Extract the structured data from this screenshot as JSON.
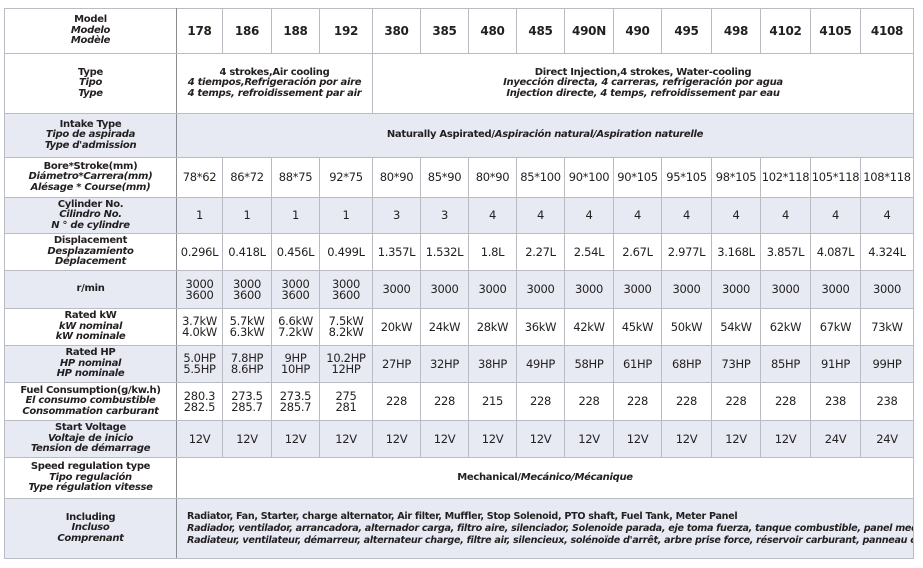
{
  "models": [
    "178",
    "186",
    "188",
    "192",
    "380",
    "385",
    "480",
    "485",
    "490N",
    "490",
    "495",
    "498",
    "4102",
    "4105",
    "4108"
  ],
  "rows": [
    {
      "key": "model",
      "label": [
        "Model",
        "Modelo",
        "Modèle"
      ],
      "bg": "white"
    },
    {
      "key": "type",
      "label": [
        "Type",
        "Tipo",
        "Type"
      ],
      "bg": "white",
      "spans": [
        {
          "cols": 4,
          "lines": [
            "4 strokes,Air cooling",
            "4 tiempos,Refrigeración por aire",
            "4 temps, refroidissement par air"
          ]
        },
        {
          "cols": 11,
          "lines": [
            "Direct Injection,4 strokes, Water-cooling",
            "Inyección directa, 4 carreras, refrigeración por agua",
            "Injection directe, 4 temps, refroidissement par eau"
          ]
        }
      ]
    },
    {
      "key": "intake",
      "label": [
        "Intake Type",
        "Tipo de aspirada",
        "Type d'admission"
      ],
      "bg": "blue",
      "spans": [
        {
          "cols": 15,
          "parts": [
            "Naturally Aspirated/",
            "Aspiración natural/Aspiration naturelle"
          ]
        }
      ]
    },
    {
      "key": "bore",
      "label": [
        "Bore*Stroke(mm)",
        "Diámetro*Carrera(mm)",
        "Alésage * Course(mm)"
      ],
      "bg": "white",
      "values": [
        "78*62",
        "86*72",
        "88*75",
        "92*75",
        "80*90",
        "85*90",
        "80*90",
        "85*100",
        "90*100",
        "90*105",
        "95*105",
        "98*105",
        "102*118",
        "105*118",
        "108*118"
      ]
    },
    {
      "key": "cylinder",
      "label": [
        "Cylinder No.",
        "Cilindro No.",
        "N ° de cylindre"
      ],
      "bg": "blue",
      "values": [
        "1",
        "1",
        "1",
        "1",
        "3",
        "3",
        "4",
        "4",
        "4",
        "4",
        "4",
        "4",
        "4",
        "4",
        "4"
      ]
    },
    {
      "key": "displacement",
      "label": [
        "Displacement",
        "Desplazamiento",
        "Déplacement"
      ],
      "bg": "white",
      "values": [
        "0.296L",
        "0.418L",
        "0.456L",
        "0.499L",
        "1.357L",
        "1.532L",
        "1.8L",
        "2.27L",
        "2.54L",
        "2.67L",
        "2.977L",
        "3.168L",
        "3.857L",
        "4.087L",
        "4.324L"
      ]
    },
    {
      "key": "rpm",
      "label": [
        "r/min"
      ],
      "bg": "blue",
      "values": [
        "3000\n3600",
        "3000\n3600",
        "3000\n3600",
        "3000\n3600",
        "3000",
        "3000",
        "3000",
        "3000",
        "3000",
        "3000",
        "3000",
        "3000",
        "3000",
        "3000",
        "3000"
      ]
    },
    {
      "key": "rated_kw",
      "label": [
        "Rated kW",
        "kW nominal",
        "kW nominale"
      ],
      "bg": "white",
      "values": [
        "3.7kW\n4.0kW",
        "5.7kW\n6.3kW",
        "6.6kW\n7.2kW",
        "7.5kW\n8.2kW",
        "20kW",
        "24kW",
        "28kW",
        "36kW",
        "42kW",
        "45kW",
        "50kW",
        "54kW",
        "62kW",
        "67kW",
        "73kW"
      ]
    },
    {
      "key": "rated_hp",
      "label": [
        "Rated HP",
        "HP nominal",
        "HP nominale"
      ],
      "bg": "blue",
      "values": [
        "5.0HP\n5.5HP",
        "7.8HP\n8.6HP",
        "9HP\n10HP",
        "10.2HP\n12HP",
        "27HP",
        "32HP",
        "38HP",
        "49HP",
        "58HP",
        "61HP",
        "68HP",
        "73HP",
        "85HP",
        "91HP",
        "99HP"
      ]
    },
    {
      "key": "fuel",
      "label": [
        "Fuel Consumption(g/kw.h)",
        "El consumo combustible",
        "Consommation carburant"
      ],
      "bg": "white",
      "values": [
        "280.3\n282.5",
        "273.5\n285.7",
        "273.5\n285.7",
        "275\n281",
        "228",
        "228",
        "215",
        "228",
        "228",
        "228",
        "228",
        "228",
        "228",
        "238",
        "238"
      ]
    },
    {
      "key": "start_voltage",
      "label": [
        "Start Voltage",
        "Voltaje de inicio",
        "Tension de démarrage"
      ],
      "bg": "blue",
      "values": [
        "12V",
        "12V",
        "12V",
        "12V",
        "12V",
        "12V",
        "12V",
        "12V",
        "12V",
        "12V",
        "12V",
        "12V",
        "12V",
        "24V",
        "24V"
      ]
    },
    {
      "key": "speed",
      "label": [
        "Speed regulation type",
        "Tipo regulación",
        "Type régulation vitesse"
      ],
      "bg": "white",
      "spans": [
        {
          "cols": 15,
          "parts": [
            "Mechanical/",
            "Mecánico/Mécanique"
          ]
        }
      ]
    },
    {
      "key": "including",
      "label": [
        "Including",
        "Incluso",
        "Comprenant"
      ],
      "bg": "blue",
      "including": [
        "Radiator, Fan, Starter, charge alternator, Air filter, Muffler, Stop Solenoid, PTO shaft, Fuel Tank, Meter Panel",
        "Radiador, ventilador, arrancadora, alternador carga, filtro  aire, silenciador, Solenoide parada, eje toma fuerza, tanque combustible, panel medidor",
        "Radiateur, ventilateur, démarreur, alternateur charge, filtre air, silencieux, solénoïde d'arrêt, arbre  prise force, réservoir carburant, panneau compteur"
      ]
    }
  ]
}
